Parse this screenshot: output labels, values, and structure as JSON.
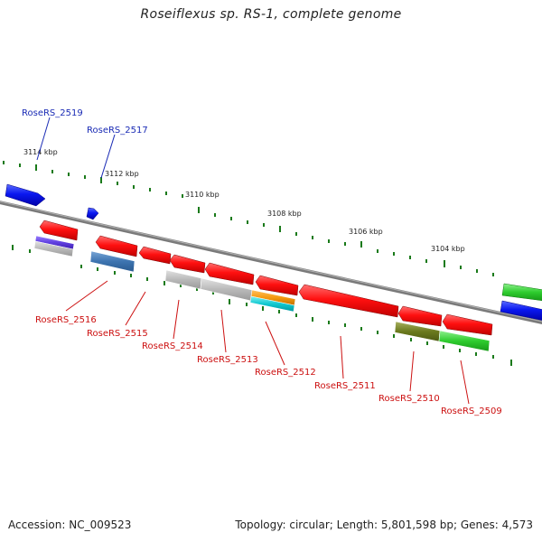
{
  "title": "Roseiflexus sp. RS-1, complete genome",
  "footer": {
    "accession": "Accession: NC_009523",
    "stats": "Topology: circular; Length: 5,801,598 bp; Genes: 4,573"
  },
  "colors": {
    "forward_gene": "#0a14e6",
    "reverse_gene": "#ee1010",
    "backbone": "#808080",
    "tick": "#1a7a1a",
    "forward_label": "#1a2bb5",
    "reverse_label": "#cc1010"
  },
  "kbp_ticks": [
    "3114 kbp",
    "3112 kbp",
    "3110 kbp",
    "3108 kbp",
    "3106 kbp",
    "3104 kbp"
  ],
  "genes_forward": [
    "RoseRS_2519",
    "RoseRS_2517"
  ],
  "genes_reverse": [
    "RoseRS_2516",
    "RoseRS_2515",
    "RoseRS_2514",
    "RoseRS_2513",
    "RoseRS_2512",
    "RoseRS_2511",
    "RoseRS_2510",
    "RoseRS_2509"
  ]
}
